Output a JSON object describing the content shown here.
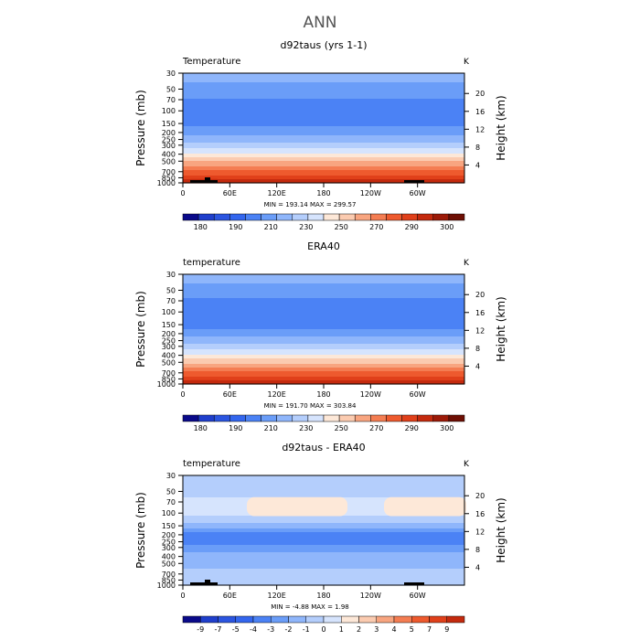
{
  "figure_title": "ANN",
  "chart_data": [
    {
      "type": "heatmap",
      "title": "d92taus (yrs 1-1)",
      "variable": "Temperature",
      "units": "K",
      "ylabel_left": "Pressure (mb)",
      "ylabel_right": "Height (km)",
      "x_ticks": [
        "0",
        "60E",
        "120E",
        "180",
        "120W",
        "60W"
      ],
      "x_tick_values": [
        0,
        60,
        120,
        180,
        240,
        300
      ],
      "xlim": [
        0,
        360
      ],
      "pressure_ticks": [
        "30",
        "50",
        "70",
        "100",
        "150",
        "200",
        "250",
        "300",
        "400",
        "500",
        "700",
        "850",
        "1000"
      ],
      "pressure_tick_values": [
        30,
        50,
        70,
        100,
        150,
        200,
        250,
        300,
        400,
        500,
        700,
        850,
        1000
      ],
      "height_ticks": [
        "4",
        "8",
        "12",
        "16",
        "20"
      ],
      "height_tick_values": [
        4,
        8,
        12,
        16,
        20
      ],
      "ylim_pressure": [
        1000,
        30
      ],
      "stats": "MIN = 193.14   MAX = 299.57",
      "colorbar_levels": [
        "180",
        "190",
        "210",
        "230",
        "250",
        "270",
        "290",
        "300"
      ],
      "colorbar_colors": [
        "#0a0a8a",
        "#1f3fcc",
        "#2b55e0",
        "#3366ee",
        "#4b82f5",
        "#6a9df8",
        "#8fb6fb",
        "#b4cefc",
        "#d6e4fd",
        "#fde8d8",
        "#fbcbb0",
        "#f8a580",
        "#f47d52",
        "#ee5a2e",
        "#e0401a",
        "#c42a0e",
        "#9c1a08",
        "#6e0f04"
      ],
      "profile_pressure": [
        30,
        50,
        70,
        100,
        150,
        200,
        250,
        300,
        400,
        500,
        700,
        850,
        1000
      ],
      "profile_temperature_K": [
        222,
        214,
        210,
        206,
        208,
        215,
        222,
        229,
        242,
        254,
        272,
        282,
        289
      ]
    },
    {
      "type": "heatmap",
      "title": "ERA40",
      "variable": "temperature",
      "units": "K",
      "ylabel_left": "Pressure (mb)",
      "ylabel_right": "Height (km)",
      "x_ticks": [
        "0",
        "60E",
        "120E",
        "180",
        "120W",
        "60W"
      ],
      "x_tick_values": [
        0,
        60,
        120,
        180,
        240,
        300
      ],
      "xlim": [
        0,
        360
      ],
      "pressure_ticks": [
        "30",
        "50",
        "70",
        "100",
        "150",
        "200",
        "250",
        "300",
        "400",
        "500",
        "700",
        "850",
        "1000"
      ],
      "pressure_tick_values": [
        30,
        50,
        70,
        100,
        150,
        200,
        250,
        300,
        400,
        500,
        700,
        850,
        1000
      ],
      "height_ticks": [
        "4",
        "8",
        "12",
        "16",
        "20"
      ],
      "height_tick_values": [
        4,
        8,
        12,
        16,
        20
      ],
      "ylim_pressure": [
        1000,
        30
      ],
      "stats": "MIN = 191.70   MAX = 303.84",
      "colorbar_levels": [
        "180",
        "190",
        "210",
        "230",
        "250",
        "270",
        "290",
        "300"
      ],
      "colorbar_colors": [
        "#0a0a8a",
        "#1f3fcc",
        "#2b55e0",
        "#3366ee",
        "#4b82f5",
        "#6a9df8",
        "#8fb6fb",
        "#b4cefc",
        "#d6e4fd",
        "#fde8d8",
        "#fbcbb0",
        "#f8a580",
        "#f47d52",
        "#ee5a2e",
        "#e0401a",
        "#c42a0e",
        "#9c1a08",
        "#6e0f04"
      ],
      "profile_pressure": [
        30,
        50,
        70,
        100,
        150,
        200,
        250,
        300,
        400,
        500,
        700,
        850,
        1000
      ],
      "profile_temperature_K": [
        222,
        214,
        209,
        204,
        207,
        214,
        221,
        228,
        241,
        253,
        272,
        283,
        293
      ]
    },
    {
      "type": "heatmap",
      "title": "d92taus - ERA40",
      "variable": "temperature",
      "units": "K",
      "ylabel_left": "Pressure (mb)",
      "ylabel_right": "Height (km)",
      "x_ticks": [
        "0",
        "60E",
        "120E",
        "180",
        "120W",
        "60W"
      ],
      "x_tick_values": [
        0,
        60,
        120,
        180,
        240,
        300
      ],
      "xlim": [
        0,
        360
      ],
      "pressure_ticks": [
        "30",
        "50",
        "70",
        "100",
        "150",
        "200",
        "250",
        "300",
        "400",
        "500",
        "700",
        "850",
        "1000"
      ],
      "pressure_tick_values": [
        30,
        50,
        70,
        100,
        150,
        200,
        250,
        300,
        400,
        500,
        700,
        850,
        1000
      ],
      "height_ticks": [
        "4",
        "8",
        "12",
        "16",
        "20"
      ],
      "height_tick_values": [
        4,
        8,
        12,
        16,
        20
      ],
      "ylim_pressure": [
        1000,
        30
      ],
      "stats": "MIN =   -4.88   MAX =    1.98",
      "colorbar_levels": [
        "-9",
        "-7",
        "-5",
        "-4",
        "-3",
        "-2",
        "-1",
        "0",
        "1",
        "2",
        "3",
        "4",
        "5",
        "7",
        "9"
      ],
      "colorbar_colors": [
        "#0a0a8a",
        "#1f3fcc",
        "#2b55e0",
        "#3366ee",
        "#4b82f5",
        "#6a9df8",
        "#8fb6fb",
        "#b4cefc",
        "#d6e4fd",
        "#fde8d8",
        "#fbcbb0",
        "#f8a580",
        "#f47d52",
        "#ee5a2e",
        "#e0401a",
        "#c42a0e"
      ],
      "profile_pressure": [
        30,
        50,
        70,
        100,
        150,
        200,
        250,
        300,
        400,
        500,
        700,
        850,
        1000
      ],
      "profile_difference_K": [
        -0.5,
        -0.5,
        0.5,
        0.5,
        -1.5,
        -3.5,
        -3.5,
        -2.5,
        -1.5,
        -1.5,
        -0.5,
        -0.5,
        -0.5
      ]
    }
  ]
}
